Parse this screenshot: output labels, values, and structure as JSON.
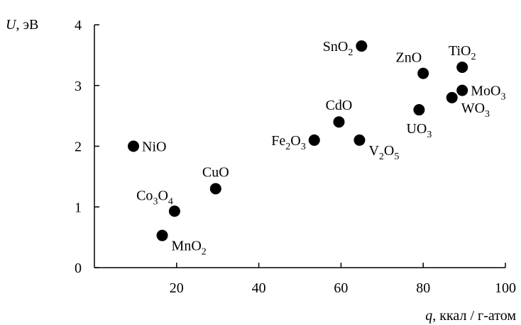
{
  "chart_data": {
    "type": "scatter",
    "title": "",
    "xlabel": {
      "var": "q",
      "unit": ", ккал / г-атом"
    },
    "ylabel": {
      "var": "U",
      "unit": ", эВ"
    },
    "xlim": [
      0,
      100
    ],
    "ylim": [
      0,
      4
    ],
    "xticks": [
      20,
      40,
      60,
      80,
      100
    ],
    "yticks": [
      0,
      1,
      2,
      3,
      4
    ],
    "grid": false,
    "marker_color": "#000000",
    "points": [
      {
        "label": [
          [
            "NiO",
            ""
          ]
        ],
        "x": 9.5,
        "y": 2.0,
        "pos": "right"
      },
      {
        "label": [
          [
            "Co",
            ""
          ],
          [
            "3",
            "sub"
          ],
          [
            "O",
            ""
          ],
          [
            "4",
            "sub"
          ]
        ],
        "x": 19.5,
        "y": 0.93,
        "pos": "above-left"
      },
      {
        "label": [
          [
            "MnO",
            ""
          ],
          [
            "2",
            "sub"
          ]
        ],
        "x": 16.5,
        "y": 0.53,
        "pos": "right-below"
      },
      {
        "label": [
          [
            "CuO",
            ""
          ]
        ],
        "x": 29.5,
        "y": 1.3,
        "pos": "above"
      },
      {
        "label": [
          [
            "Fe",
            ""
          ],
          [
            "2",
            "sub"
          ],
          [
            "O",
            ""
          ],
          [
            "3",
            "sub"
          ]
        ],
        "x": 53.5,
        "y": 2.1,
        "pos": "left"
      },
      {
        "label": [
          [
            "CdO",
            ""
          ]
        ],
        "x": 59.5,
        "y": 2.4,
        "pos": "above"
      },
      {
        "label": [
          [
            "V",
            ""
          ],
          [
            "2",
            "sub"
          ],
          [
            "O",
            ""
          ],
          [
            "5",
            "sub"
          ]
        ],
        "x": 64.5,
        "y": 2.1,
        "pos": "right-below"
      },
      {
        "label": [
          [
            "SnO",
            ""
          ],
          [
            "2",
            "sub"
          ]
        ],
        "x": 65.0,
        "y": 3.65,
        "pos": "left"
      },
      {
        "label": [
          [
            "ZnO",
            ""
          ]
        ],
        "x": 80.0,
        "y": 3.2,
        "pos": "above-left"
      },
      {
        "label": [
          [
            "UO",
            ""
          ],
          [
            "3",
            "sub"
          ]
        ],
        "x": 79.0,
        "y": 2.6,
        "pos": "below"
      },
      {
        "label": [
          [
            "TiO",
            ""
          ],
          [
            "2",
            "sub"
          ]
        ],
        "x": 89.5,
        "y": 3.3,
        "pos": "above"
      },
      {
        "label": [
          [
            "MoO",
            ""
          ],
          [
            "3",
            "sub"
          ]
        ],
        "x": 89.5,
        "y": 2.92,
        "pos": "right"
      },
      {
        "label": [
          [
            "WO",
            ""
          ],
          [
            "3",
            "sub"
          ]
        ],
        "x": 87.0,
        "y": 2.8,
        "pos": "right-below"
      }
    ]
  }
}
